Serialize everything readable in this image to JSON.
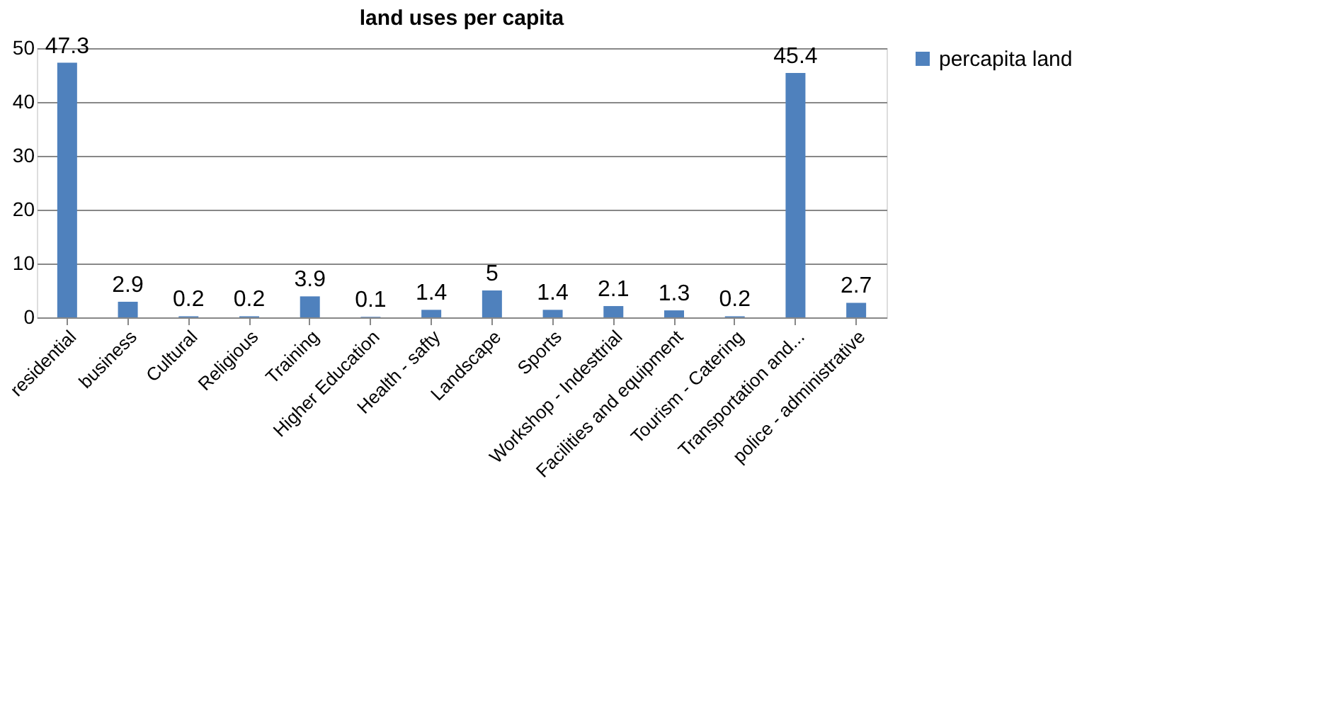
{
  "chart_data": {
    "type": "bar",
    "title": "land uses per capita",
    "categories": [
      "residential",
      "business",
      "Cultural",
      "Religious",
      "Training",
      "Higher Education",
      "Health - safty",
      "Landscape",
      "Sports",
      "Workshop - Indesttrial",
      "Facilities and equipment",
      "Tourism - Catering",
      "Transportation and...",
      "police - administrative"
    ],
    "series": [
      {
        "name": "percapita land",
        "color": "#4f81bd",
        "values": [
          47.3,
          2.9,
          0.2,
          0.2,
          3.9,
          0.1,
          1.4,
          5,
          1.4,
          2.1,
          1.3,
          0.2,
          45.4,
          2.7
        ]
      }
    ],
    "ylim": [
      0,
      50
    ],
    "yticks": [
      0,
      10,
      20,
      30,
      40,
      50
    ],
    "grid": "y",
    "legend": "right",
    "data_labels": true
  }
}
